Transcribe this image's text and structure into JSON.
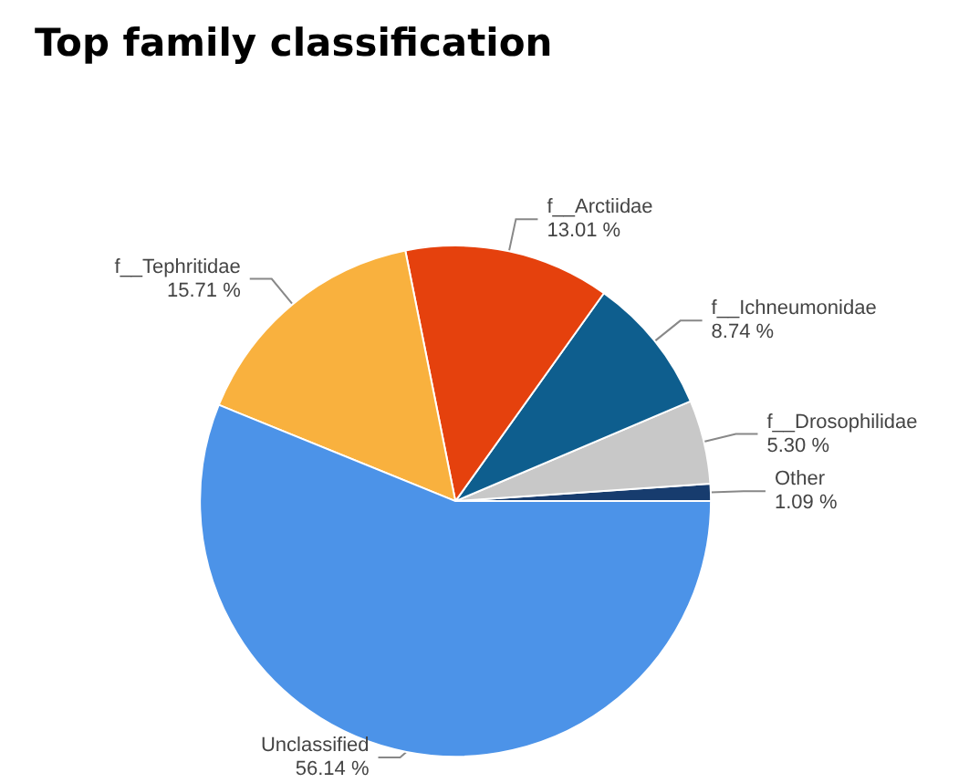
{
  "chart_data": {
    "type": "pie",
    "title": "Top family classification",
    "categories": [
      "Other",
      "f__Drosophilidae",
      "f__Ichneumonidae",
      "f__Arctiidae",
      "f__Tephritidae",
      "Unclassified"
    ],
    "values": [
      1.09,
      5.3,
      8.74,
      13.01,
      15.71,
      56.14
    ],
    "value_labels": [
      "1.09 %",
      "5.30 %",
      "8.74 %",
      "13.01 %",
      "15.71 %",
      "56.14 %"
    ],
    "colors": [
      "#173c6e",
      "#c8c8c8",
      "#0e5e8e",
      "#e5410d",
      "#f9b13e",
      "#4c93e8"
    ],
    "legend": false
  }
}
